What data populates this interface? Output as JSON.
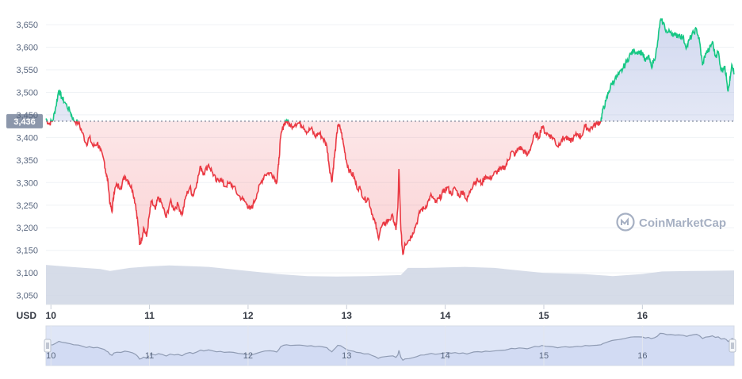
{
  "chart_data": {
    "type": "line",
    "y_axis": {
      "unit_label": "USD",
      "ticks": [
        3050,
        3100,
        3150,
        3200,
        3250,
        3300,
        3350,
        3400,
        3450,
        3500,
        3550,
        3600,
        3650
      ],
      "tick_labels": [
        "3,050",
        "3,100",
        "3,150",
        "3,200",
        "3,250",
        "3,300",
        "3,350",
        "3,400",
        "3,450",
        "3,500",
        "3,550",
        "3,600",
        "3,650"
      ],
      "range": [
        3030,
        3680
      ]
    },
    "x_axis": {
      "ticks": [
        10,
        11,
        12,
        13,
        14,
        15,
        16
      ],
      "tick_labels": [
        "10",
        "11",
        "12",
        "13",
        "14",
        "15",
        "16"
      ],
      "range": [
        9.95,
        16.93
      ]
    },
    "baseline": {
      "value": 3436,
      "label": "3,436"
    },
    "colors": {
      "above": "#16c784",
      "below": "#ea3943",
      "volume": "#cfd6e4",
      "navigator_fill": "#dfe6f7",
      "navigator_line": "#8f9bb3"
    },
    "watermark": "CoinMarketCap",
    "price_series": [
      [
        9.95,
        3442
      ],
      [
        9.98,
        3430
      ],
      [
        10.02,
        3438
      ],
      [
        10.05,
        3468
      ],
      [
        10.08,
        3505
      ],
      [
        10.11,
        3488
      ],
      [
        10.15,
        3475
      ],
      [
        10.2,
        3455
      ],
      [
        10.23,
        3438
      ],
      [
        10.28,
        3432
      ],
      [
        10.32,
        3410
      ],
      [
        10.36,
        3385
      ],
      [
        10.39,
        3400
      ],
      [
        10.43,
        3380
      ],
      [
        10.47,
        3388
      ],
      [
        10.5,
        3372
      ],
      [
        10.54,
        3348
      ],
      [
        10.56,
        3320
      ],
      [
        10.58,
        3300
      ],
      [
        10.6,
        3252
      ],
      [
        10.62,
        3235
      ],
      [
        10.64,
        3280
      ],
      [
        10.67,
        3295
      ],
      [
        10.71,
        3290
      ],
      [
        10.75,
        3315
      ],
      [
        10.79,
        3302
      ],
      [
        10.83,
        3282
      ],
      [
        10.86,
        3250
      ],
      [
        10.88,
        3215
      ],
      [
        10.9,
        3162
      ],
      [
        10.92,
        3175
      ],
      [
        10.94,
        3200
      ],
      [
        10.97,
        3180
      ],
      [
        11.0,
        3230
      ],
      [
        11.02,
        3258
      ],
      [
        11.06,
        3240
      ],
      [
        11.09,
        3268
      ],
      [
        11.13,
        3250
      ],
      [
        11.17,
        3222
      ],
      [
        11.21,
        3258
      ],
      [
        11.25,
        3242
      ],
      [
        11.29,
        3252
      ],
      [
        11.33,
        3228
      ],
      [
        11.37,
        3270
      ],
      [
        11.41,
        3290
      ],
      [
        11.44,
        3270
      ],
      [
        11.48,
        3300
      ],
      [
        11.52,
        3336
      ],
      [
        11.55,
        3320
      ],
      [
        11.6,
        3340
      ],
      [
        11.64,
        3322
      ],
      [
        11.68,
        3302
      ],
      [
        11.72,
        3310
      ],
      [
        11.76,
        3292
      ],
      [
        11.81,
        3298
      ],
      [
        11.85,
        3292
      ],
      [
        11.9,
        3272
      ],
      [
        11.95,
        3262
      ],
      [
        11.99,
        3252
      ],
      [
        12.02,
        3240
      ],
      [
        12.05,
        3250
      ],
      [
        12.09,
        3275
      ],
      [
        12.13,
        3300
      ],
      [
        12.17,
        3318
      ],
      [
        12.22,
        3322
      ],
      [
        12.26,
        3315
      ],
      [
        12.29,
        3300
      ],
      [
        12.31,
        3340
      ],
      [
        12.33,
        3400
      ],
      [
        12.36,
        3428
      ],
      [
        12.39,
        3438
      ],
      [
        12.43,
        3425
      ],
      [
        12.48,
        3430
      ],
      [
        12.52,
        3432
      ],
      [
        12.56,
        3425
      ],
      [
        12.6,
        3412
      ],
      [
        12.64,
        3420
      ],
      [
        12.68,
        3402
      ],
      [
        12.72,
        3410
      ],
      [
        12.76,
        3398
      ],
      [
        12.8,
        3380
      ],
      [
        12.82,
        3342
      ],
      [
        12.85,
        3302
      ],
      [
        12.87,
        3345
      ],
      [
        12.89,
        3382
      ],
      [
        12.91,
        3428
      ],
      [
        12.94,
        3418
      ],
      [
        12.97,
        3382
      ],
      [
        13.0,
        3345
      ],
      [
        13.03,
        3325
      ],
      [
        13.07,
        3315
      ],
      [
        13.1,
        3292
      ],
      [
        13.14,
        3285
      ],
      [
        13.18,
        3262
      ],
      [
        13.22,
        3265
      ],
      [
        13.26,
        3230
      ],
      [
        13.29,
        3210
      ],
      [
        13.32,
        3178
      ],
      [
        13.35,
        3200
      ],
      [
        13.39,
        3210
      ],
      [
        13.43,
        3218
      ],
      [
        13.47,
        3225
      ],
      [
        13.5,
        3195
      ],
      [
        13.52,
        3245
      ],
      [
        13.53,
        3330
      ],
      [
        13.55,
        3195
      ],
      [
        13.57,
        3140
      ],
      [
        13.59,
        3165
      ],
      [
        13.63,
        3172
      ],
      [
        13.67,
        3188
      ],
      [
        13.71,
        3210
      ],
      [
        13.75,
        3240
      ],
      [
        13.79,
        3242
      ],
      [
        13.83,
        3260
      ],
      [
        13.86,
        3272
      ],
      [
        13.9,
        3255
      ],
      [
        13.94,
        3265
      ],
      [
        13.98,
        3278
      ],
      [
        14.02,
        3290
      ],
      [
        14.06,
        3275
      ],
      [
        14.1,
        3288
      ],
      [
        14.14,
        3270
      ],
      [
        14.18,
        3282
      ],
      [
        14.22,
        3260
      ],
      [
        14.26,
        3285
      ],
      [
        14.29,
        3300
      ],
      [
        14.33,
        3305
      ],
      [
        14.37,
        3298
      ],
      [
        14.41,
        3315
      ],
      [
        14.45,
        3308
      ],
      [
        14.49,
        3318
      ],
      [
        14.53,
        3325
      ],
      [
        14.57,
        3330
      ],
      [
        14.61,
        3336
      ],
      [
        14.64,
        3350
      ],
      [
        14.67,
        3368
      ],
      [
        14.71,
        3362
      ],
      [
        14.75,
        3378
      ],
      [
        14.79,
        3372
      ],
      [
        14.83,
        3360
      ],
      [
        14.87,
        3380
      ],
      [
        14.91,
        3408
      ],
      [
        14.95,
        3400
      ],
      [
        14.98,
        3425
      ],
      [
        15.02,
        3410
      ],
      [
        15.06,
        3405
      ],
      [
        15.1,
        3398
      ],
      [
        15.14,
        3380
      ],
      [
        15.18,
        3395
      ],
      [
        15.22,
        3400
      ],
      [
        15.26,
        3392
      ],
      [
        15.3,
        3398
      ],
      [
        15.34,
        3408
      ],
      [
        15.38,
        3402
      ],
      [
        15.42,
        3425
      ],
      [
        15.46,
        3418
      ],
      [
        15.5,
        3425
      ],
      [
        15.54,
        3430
      ],
      [
        15.58,
        3438
      ],
      [
        15.6,
        3462
      ],
      [
        15.63,
        3480
      ],
      [
        15.66,
        3502
      ],
      [
        15.69,
        3520
      ],
      [
        15.72,
        3528
      ],
      [
        15.76,
        3538
      ],
      [
        15.8,
        3552
      ],
      [
        15.84,
        3568
      ],
      [
        15.88,
        3585
      ],
      [
        15.92,
        3592
      ],
      [
        15.96,
        3590
      ],
      [
        16.0,
        3588
      ],
      [
        16.03,
        3568
      ],
      [
        16.06,
        3580
      ],
      [
        16.09,
        3558
      ],
      [
        16.12,
        3572
      ],
      [
        16.15,
        3600
      ],
      [
        16.18,
        3658
      ],
      [
        16.21,
        3655
      ],
      [
        16.25,
        3632
      ],
      [
        16.29,
        3635
      ],
      [
        16.33,
        3625
      ],
      [
        16.37,
        3628
      ],
      [
        16.41,
        3622
      ],
      [
        16.45,
        3600
      ],
      [
        16.48,
        3618
      ],
      [
        16.52,
        3632
      ],
      [
        16.55,
        3640
      ],
      [
        16.58,
        3612
      ],
      [
        16.61,
        3560
      ],
      [
        16.64,
        3586
      ],
      [
        16.68,
        3595
      ],
      [
        16.71,
        3612
      ],
      [
        16.74,
        3580
      ],
      [
        16.77,
        3590
      ],
      [
        16.8,
        3548
      ],
      [
        16.83,
        3558
      ],
      [
        16.85,
        3540
      ],
      [
        16.87,
        3502
      ],
      [
        16.89,
        3530
      ],
      [
        16.91,
        3560
      ],
      [
        16.93,
        3540
      ]
    ],
    "volume_series": [
      [
        9.95,
        0.78
      ],
      [
        10.2,
        0.74
      ],
      [
        10.5,
        0.7
      ],
      [
        10.6,
        0.66
      ],
      [
        10.8,
        0.72
      ],
      [
        11.0,
        0.75
      ],
      [
        11.2,
        0.77
      ],
      [
        11.6,
        0.74
      ],
      [
        12.0,
        0.66
      ],
      [
        12.3,
        0.6
      ],
      [
        12.6,
        0.56
      ],
      [
        12.9,
        0.55
      ],
      [
        13.2,
        0.56
      ],
      [
        13.55,
        0.58
      ],
      [
        13.62,
        0.72
      ],
      [
        13.8,
        0.72
      ],
      [
        14.2,
        0.74
      ],
      [
        14.5,
        0.72
      ],
      [
        14.8,
        0.66
      ],
      [
        15.0,
        0.62
      ],
      [
        15.4,
        0.6
      ],
      [
        15.7,
        0.56
      ],
      [
        16.0,
        0.6
      ],
      [
        16.2,
        0.65
      ],
      [
        16.5,
        0.66
      ],
      [
        16.93,
        0.67
      ]
    ]
  }
}
